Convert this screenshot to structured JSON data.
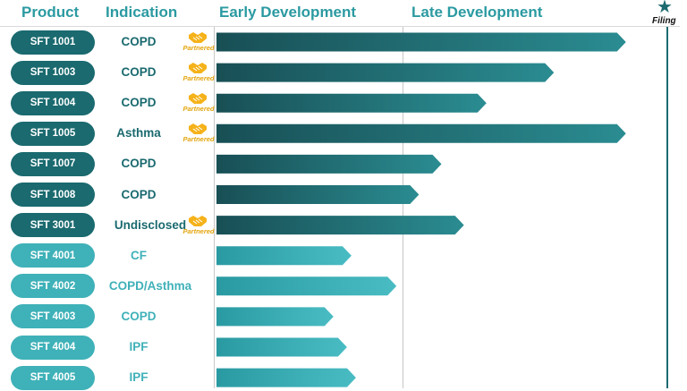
{
  "headers": {
    "product": "Product",
    "indication": "Indication",
    "early": "Early Development",
    "late": "Late Development",
    "filing": "Filing"
  },
  "partner_label": "Partnered",
  "colors": {
    "dark": "#1a6a6f",
    "light": "#3fb1b8",
    "header": "#2b9aa1",
    "partner": "#f5b21a"
  },
  "chart_data": {
    "type": "bar",
    "orientation": "horizontal",
    "stages": [
      "Early Development",
      "Late Development",
      "Filing"
    ],
    "rows": [
      {
        "product": "SFT 1001",
        "indication": "COPD",
        "partnered": true,
        "progress": 0.91,
        "tone": "dark"
      },
      {
        "product": "SFT 1003",
        "indication": "COPD",
        "partnered": true,
        "progress": 0.75,
        "tone": "dark"
      },
      {
        "product": "SFT 1004",
        "indication": "COPD",
        "partnered": true,
        "progress": 0.6,
        "tone": "dark"
      },
      {
        "product": "SFT 1005",
        "indication": "Asthma",
        "partnered": true,
        "progress": 0.91,
        "tone": "dark"
      },
      {
        "product": "SFT 1007",
        "indication": "COPD",
        "partnered": false,
        "progress": 0.5,
        "tone": "dark"
      },
      {
        "product": "SFT 1008",
        "indication": "COPD",
        "partnered": false,
        "progress": 0.45,
        "tone": "dark"
      },
      {
        "product": "SFT 3001",
        "indication": "Undisclosed",
        "partnered": true,
        "progress": 0.55,
        "tone": "dark"
      },
      {
        "product": "SFT 4001",
        "indication": "CF",
        "partnered": false,
        "progress": 0.3,
        "tone": "light"
      },
      {
        "product": "SFT 4002",
        "indication": "COPD/Asthma",
        "partnered": false,
        "progress": 0.4,
        "tone": "light"
      },
      {
        "product": "SFT 4003",
        "indication": "COPD",
        "partnered": false,
        "progress": 0.26,
        "tone": "light"
      },
      {
        "product": "SFT 4004",
        "indication": "IPF",
        "partnered": false,
        "progress": 0.29,
        "tone": "light"
      },
      {
        "product": "SFT 4005",
        "indication": "IPF",
        "partnered": false,
        "progress": 0.31,
        "tone": "light"
      }
    ]
  }
}
